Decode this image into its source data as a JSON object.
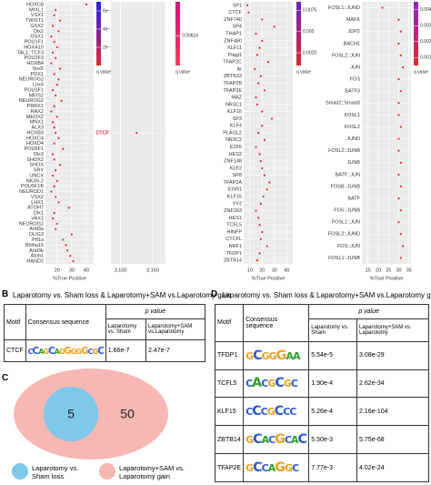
{
  "chart_data": [
    {
      "type": "dot",
      "x_label": "%True Positive",
      "color": "#e8262b",
      "categories": [
        "HOXC8",
        "MIXL1",
        "VSX1",
        "TWIST1",
        "GSX2",
        "Dlx2",
        "GSX1",
        "POU1F1",
        "HOXA10",
        "TAL1::TCF3",
        "POU2F3",
        "HOXB4",
        "Sox5",
        "PDX1",
        "NEUROG2",
        "Lhx4",
        "POU3F1",
        "MEIS2",
        "NEUROG2",
        "PRRX1",
        "RAX2",
        "MEOX2",
        "MNX1",
        "ALX3",
        "HOXB3",
        "HOXC4",
        "HOXD4",
        "POU5F1",
        "Dlx3",
        "SHOX2",
        "SHOX",
        "SRY",
        "UNCX",
        "NKX6-2",
        "POU5F1B",
        "NEUROD1",
        "VSX2",
        "LHX1",
        "ATOH7",
        "Dlx1",
        "VAX1",
        "NEUROG2",
        "Arid3a",
        "OLIG3",
        "Ptf1a",
        "Bhlha15",
        "Arid3b",
        "Atoh1",
        "HAND2"
      ],
      "values": [
        40,
        19,
        18,
        22,
        17,
        21,
        16,
        18,
        20,
        17,
        19,
        16,
        22,
        18,
        21,
        20,
        17,
        19,
        23,
        18,
        16,
        20,
        17,
        18,
        19,
        21,
        18,
        24,
        17,
        18,
        22,
        19,
        17,
        20,
        18,
        16,
        19,
        21,
        28,
        18,
        17,
        20,
        19,
        30,
        24,
        26,
        27,
        29,
        31
      ],
      "xlim": [
        12,
        45
      ],
      "xticks": [
        20,
        30,
        40
      ],
      "colorbar": {
        "title": "q value",
        "colors": [
          "#2020ff",
          "#e8262b"
        ],
        "clim": [
          0,
          7e-10
        ],
        "ticks": [
          {
            "value": 6e-10,
            "label": "6e−10"
          },
          {
            "value": 4e-10,
            "label": "4e−10"
          },
          {
            "value": 2e-10,
            "label": "2e−10"
          }
        ]
      }
    },
    {
      "type": "dot",
      "color": "#e8262b",
      "categories": [
        "CTCF"
      ],
      "values": [
        3.125
      ],
      "xlim": [
        3.085,
        3.17
      ],
      "xticks": [
        {
          "value": 3.1,
          "label": "3.100"
        },
        {
          "value": 3.15,
          "label": "3.150"
        }
      ],
      "colorbar": {
        "title": "q value",
        "colors": [
          "#c8157a",
          "#f04060"
        ],
        "clim": [
          0.0061,
          0.0064
        ],
        "ticks": [
          0.00624
        ]
      }
    },
    {
      "type": "dot",
      "x_label": "%True Positive",
      "color": "#e8262b",
      "categories": [
        "SP1",
        "CTCF",
        "ZNF740",
        "SP4",
        "THAP1",
        "ZNF460",
        "KLF11",
        "Plagl1",
        "TFAP2C",
        "Ar",
        "ZBTB33",
        "TFAP2B",
        "TFAP2E",
        "MAZ",
        "NR3C1",
        "KLF16",
        "SP3",
        "KLF4",
        "PLAGL2",
        "NR3C2",
        "E2F6",
        "HES2",
        "ZNF148",
        "KLF2",
        "SP8",
        "TFAP2A",
        "EGR1",
        "KLF15",
        "YY2",
        "ZNF263",
        "HES1",
        "TCFL5",
        "HINFP",
        "CTCFL",
        "NRF1",
        "TFDP1",
        "ZBTB14"
      ],
      "values": [
        8,
        9,
        20,
        30,
        15,
        20,
        18,
        16,
        25,
        14,
        19,
        17,
        22,
        15,
        16,
        20,
        28,
        20,
        17,
        22,
        15,
        18,
        19,
        20,
        22,
        26,
        24,
        21,
        19,
        15,
        17,
        18,
        20,
        19,
        24,
        18,
        16
      ],
      "xlim": [
        5,
        45
      ],
      "xticks": [
        10,
        20,
        30,
        40
      ],
      "colorbar": {
        "title": "q value",
        "colors": [
          "#6a1fc0",
          "#e8262b"
        ],
        "clim": [
          0.001,
          0.0085
        ],
        "ticks": [
          0.0075,
          0.005,
          0.0025
        ]
      }
    },
    {
      "type": "dot",
      "x_label": "%True Positive",
      "color": "#e8262b",
      "categories": [
        "FOSL1::JUND",
        "MAFK",
        "JDP2",
        "BACH1",
        "FOSL2::JUN",
        "JUN",
        "FOS",
        "BATF3",
        "Smad2::Smad3",
        "FOSL1",
        "FOSL2",
        "JUND",
        "FOSL2::JUNB",
        "JUNB",
        "BATF::JUN",
        "FOSB::JUNB",
        "BATF",
        "FOS::JUNB",
        "FOSL1::JUN",
        "FOSL2::JUND",
        "FOS::JUN",
        "FOSL1::JUNB"
      ],
      "values": [
        22,
        30,
        31,
        30,
        31,
        32,
        30,
        31,
        30,
        30,
        31,
        30,
        30,
        31,
        30,
        31,
        30,
        31,
        30,
        31,
        32,
        31
      ],
      "xlim": [
        12,
        36
      ],
      "xticks": [
        15,
        20,
        25,
        30,
        35
      ],
      "colorbar": {
        "title": "q value",
        "colors": [
          "#9020d0",
          "#e8262b"
        ],
        "clim": [
          0.0005,
          0.0045
        ],
        "ticks": [
          0.004,
          0.003,
          0.002,
          0.001
        ]
      }
    }
  ],
  "panel_b": {
    "label": "B",
    "title": "Laparotomy vs. Sham loss & Laparotomy+SAM vs.Laparotomy gain",
    "header": [
      "Motif",
      "Consensus sequence",
      "p value",
      "Laparotomy vs. Sham",
      "Laparotomy+SAM vs.Laparotomy"
    ],
    "rows": [
      [
        "CTCF",
        "CCAGCAGGGGGCGC",
        "1.66e-7",
        "2.47e-7"
      ]
    ]
  },
  "panel_c": {
    "label": "C",
    "inner": "5",
    "outer": "50",
    "legend": [
      "Laparotomy vs. Sham loss",
      "Laparotomy+SAM vs. Laparotomy gain"
    ]
  },
  "panel_d": {
    "label": "D",
    "title": "Laparotomy vs. Sham loss & Laparotomy+SAM vs.Laparotomy gain",
    "header": [
      "Motif",
      "Consensus sequence",
      "p value",
      "Laparotomy vs. Sham",
      "Laparotomy+SAM vs. Laparotomy"
    ],
    "rows": [
      [
        "TFDP1",
        "GCGGGAA",
        "5.54e-5",
        "3.08e-29"
      ],
      [
        "TCFL5",
        "CACGCGC",
        "1.90e-4",
        "2.62e-34"
      ],
      [
        "KLF15",
        "CCCGCCC",
        "5.26e-4",
        "2.16e-104"
      ],
      [
        "ZBTB14",
        "GCACGCAC",
        "5.50e-3",
        "5.75e-68"
      ],
      [
        "TFAP2E",
        "GCCAGGC",
        "7.77e-3",
        "4.02e-24"
      ]
    ]
  }
}
